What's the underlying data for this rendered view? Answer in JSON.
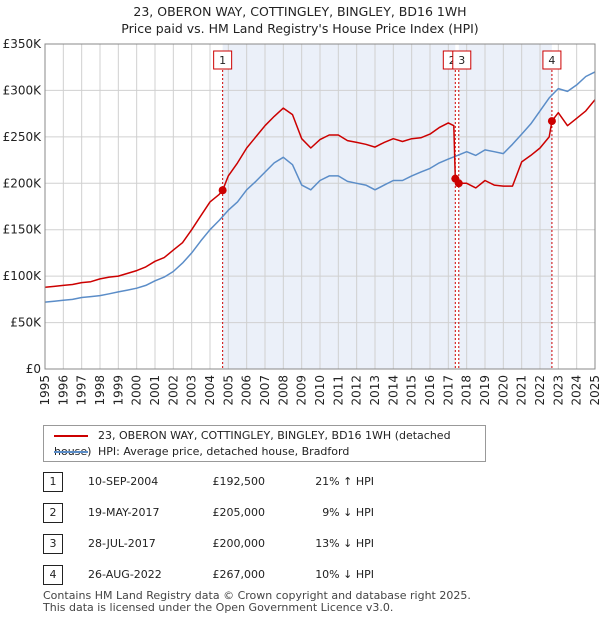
{
  "title": {
    "line1": "23, OBERON WAY, COTTINGLEY, BINGLEY, BD16 1WH",
    "line2": "Price paid vs. HM Land Registry's House Price Index (HPI)"
  },
  "legend": {
    "property": "23, OBERON WAY, COTTINGLEY, BINGLEY, BD16 1WH (detached house)",
    "hpi": "HPI: Average price, detached house, Bradford"
  },
  "sales": [
    {
      "num": "1",
      "date": "10-SEP-2004",
      "price": "£192,500",
      "hpi": "21% ↑ HPI"
    },
    {
      "num": "2",
      "date": "19-MAY-2017",
      "price": "£205,000",
      "hpi": "9% ↓ HPI"
    },
    {
      "num": "3",
      "date": "28-JUL-2017",
      "price": "£200,000",
      "hpi": "13% ↓ HPI"
    },
    {
      "num": "4",
      "date": "26-AUG-2022",
      "price": "£267,000",
      "hpi": "10% ↓ HPI"
    }
  ],
  "footer": {
    "line1": "Contains HM Land Registry data © Crown copyright and database right 2025.",
    "line2": "This data is licensed under the Open Government Licence v3.0."
  },
  "colors": {
    "property": "#cc0000",
    "hpi": "#5b8dc8",
    "shade": "#dde6f5",
    "grid": "#d0d0d0",
    "vline": "#cc0000"
  },
  "chart_data": {
    "type": "line",
    "title": "Price paid vs. HM Land Registry's House Price Index (HPI)",
    "xlabel": "",
    "ylabel": "",
    "xlim": [
      1995,
      2025
    ],
    "ylim": [
      0,
      350000
    ],
    "xticks": [
      "1995",
      "1996",
      "1997",
      "1998",
      "1999",
      "2000",
      "2001",
      "2002",
      "2003",
      "2004",
      "2005",
      "2006",
      "2007",
      "2008",
      "2009",
      "2010",
      "2011",
      "2012",
      "2013",
      "2014",
      "2015",
      "2016",
      "2017",
      "2018",
      "2019",
      "2020",
      "2021",
      "2022",
      "2023",
      "2024",
      "2025"
    ],
    "yticks": [
      {
        "value": 0,
        "label": "£0"
      },
      {
        "value": 50000,
        "label": "£50K"
      },
      {
        "value": 100000,
        "label": "£100K"
      },
      {
        "value": 150000,
        "label": "£150K"
      },
      {
        "value": 200000,
        "label": "£200K"
      },
      {
        "value": 250000,
        "label": "£250K"
      },
      {
        "value": 300000,
        "label": "£300K"
      },
      {
        "value": 350000,
        "label": "£350K"
      }
    ],
    "shaded_ranges": [
      [
        2004.69,
        2017.38
      ],
      [
        2017.57,
        2022.65
      ]
    ],
    "markers": [
      {
        "label": "1",
        "x": 2004.69,
        "y": 192500
      },
      {
        "label": "2",
        "x": 2017.38,
        "y": 205000
      },
      {
        "label": "3",
        "x": 2017.57,
        "y": 200000
      },
      {
        "label": "4",
        "x": 2022.65,
        "y": 267000
      }
    ],
    "series": [
      {
        "name": "23, OBERON WAY, COTTINGLEY, BINGLEY, BD16 1WH (detached house)",
        "x": [
          1995,
          1995.5,
          1996,
          1996.5,
          1997,
          1997.5,
          1998,
          1998.5,
          1999,
          1999.5,
          2000,
          2000.5,
          2001,
          2001.5,
          2002,
          2002.5,
          2003,
          2003.5,
          2004,
          2004.5,
          2004.69,
          2005,
          2005.5,
          2006,
          2006.5,
          2007,
          2007.5,
          2008,
          2008.5,
          2009,
          2009.5,
          2010,
          2010.5,
          2011,
          2011.5,
          2012,
          2012.5,
          2013,
          2013.5,
          2014,
          2014.5,
          2015,
          2015.5,
          2016,
          2016.5,
          2017,
          2017.3,
          2017.38,
          2017.57,
          2018,
          2018.5,
          2019,
          2019.5,
          2020,
          2020.5,
          2021,
          2021.5,
          2022,
          2022.5,
          2022.65,
          2023,
          2023.5,
          2024,
          2024.5,
          2025
        ],
        "values": [
          88000,
          89000,
          90000,
          91000,
          93000,
          94000,
          97000,
          99000,
          100000,
          103000,
          106000,
          110000,
          116000,
          120000,
          128000,
          136000,
          150000,
          165000,
          180000,
          188000,
          192500,
          208000,
          222000,
          238000,
          250000,
          262000,
          272000,
          281000,
          274000,
          248000,
          238000,
          247000,
          252000,
          252000,
          246000,
          244000,
          242000,
          239000,
          244000,
          248000,
          245000,
          248000,
          249000,
          253000,
          260000,
          265000,
          262000,
          205000,
          200000,
          200000,
          195000,
          203000,
          198000,
          197000,
          197000,
          223000,
          230000,
          238000,
          250000,
          267000,
          276000,
          262000,
          270000,
          278000,
          290000
        ]
      },
      {
        "name": "HPI: Average price, detached house, Bradford",
        "x": [
          1995,
          1995.5,
          1996,
          1996.5,
          1997,
          1997.5,
          1998,
          1998.5,
          1999,
          1999.5,
          2000,
          2000.5,
          2001,
          2001.5,
          2002,
          2002.5,
          2003,
          2003.5,
          2004,
          2004.5,
          2005,
          2005.5,
          2006,
          2006.5,
          2007,
          2007.5,
          2008,
          2008.5,
          2009,
          2009.5,
          2010,
          2010.5,
          2011,
          2011.5,
          2012,
          2012.5,
          2013,
          2013.5,
          2014,
          2014.5,
          2015,
          2015.5,
          2016,
          2016.5,
          2017,
          2017.5,
          2018,
          2018.5,
          2019,
          2019.5,
          2020,
          2020.5,
          2021,
          2021.5,
          2022,
          2022.5,
          2023,
          2023.5,
          2024,
          2024.5,
          2025
        ],
        "values": [
          72000,
          73000,
          74000,
          75000,
          77000,
          78000,
          79000,
          81000,
          83000,
          85000,
          87000,
          90000,
          95000,
          99000,
          105000,
          114000,
          125000,
          138000,
          150000,
          160000,
          171000,
          180000,
          193000,
          202000,
          212000,
          222000,
          228000,
          220000,
          198000,
          193000,
          203000,
          208000,
          208000,
          202000,
          200000,
          198000,
          193000,
          198000,
          203000,
          203000,
          208000,
          212000,
          216000,
          222000,
          226000,
          230000,
          234000,
          230000,
          236000,
          234000,
          232000,
          242000,
          253000,
          264000,
          278000,
          292000,
          302000,
          299000,
          306000,
          315000,
          320000
        ]
      }
    ]
  }
}
